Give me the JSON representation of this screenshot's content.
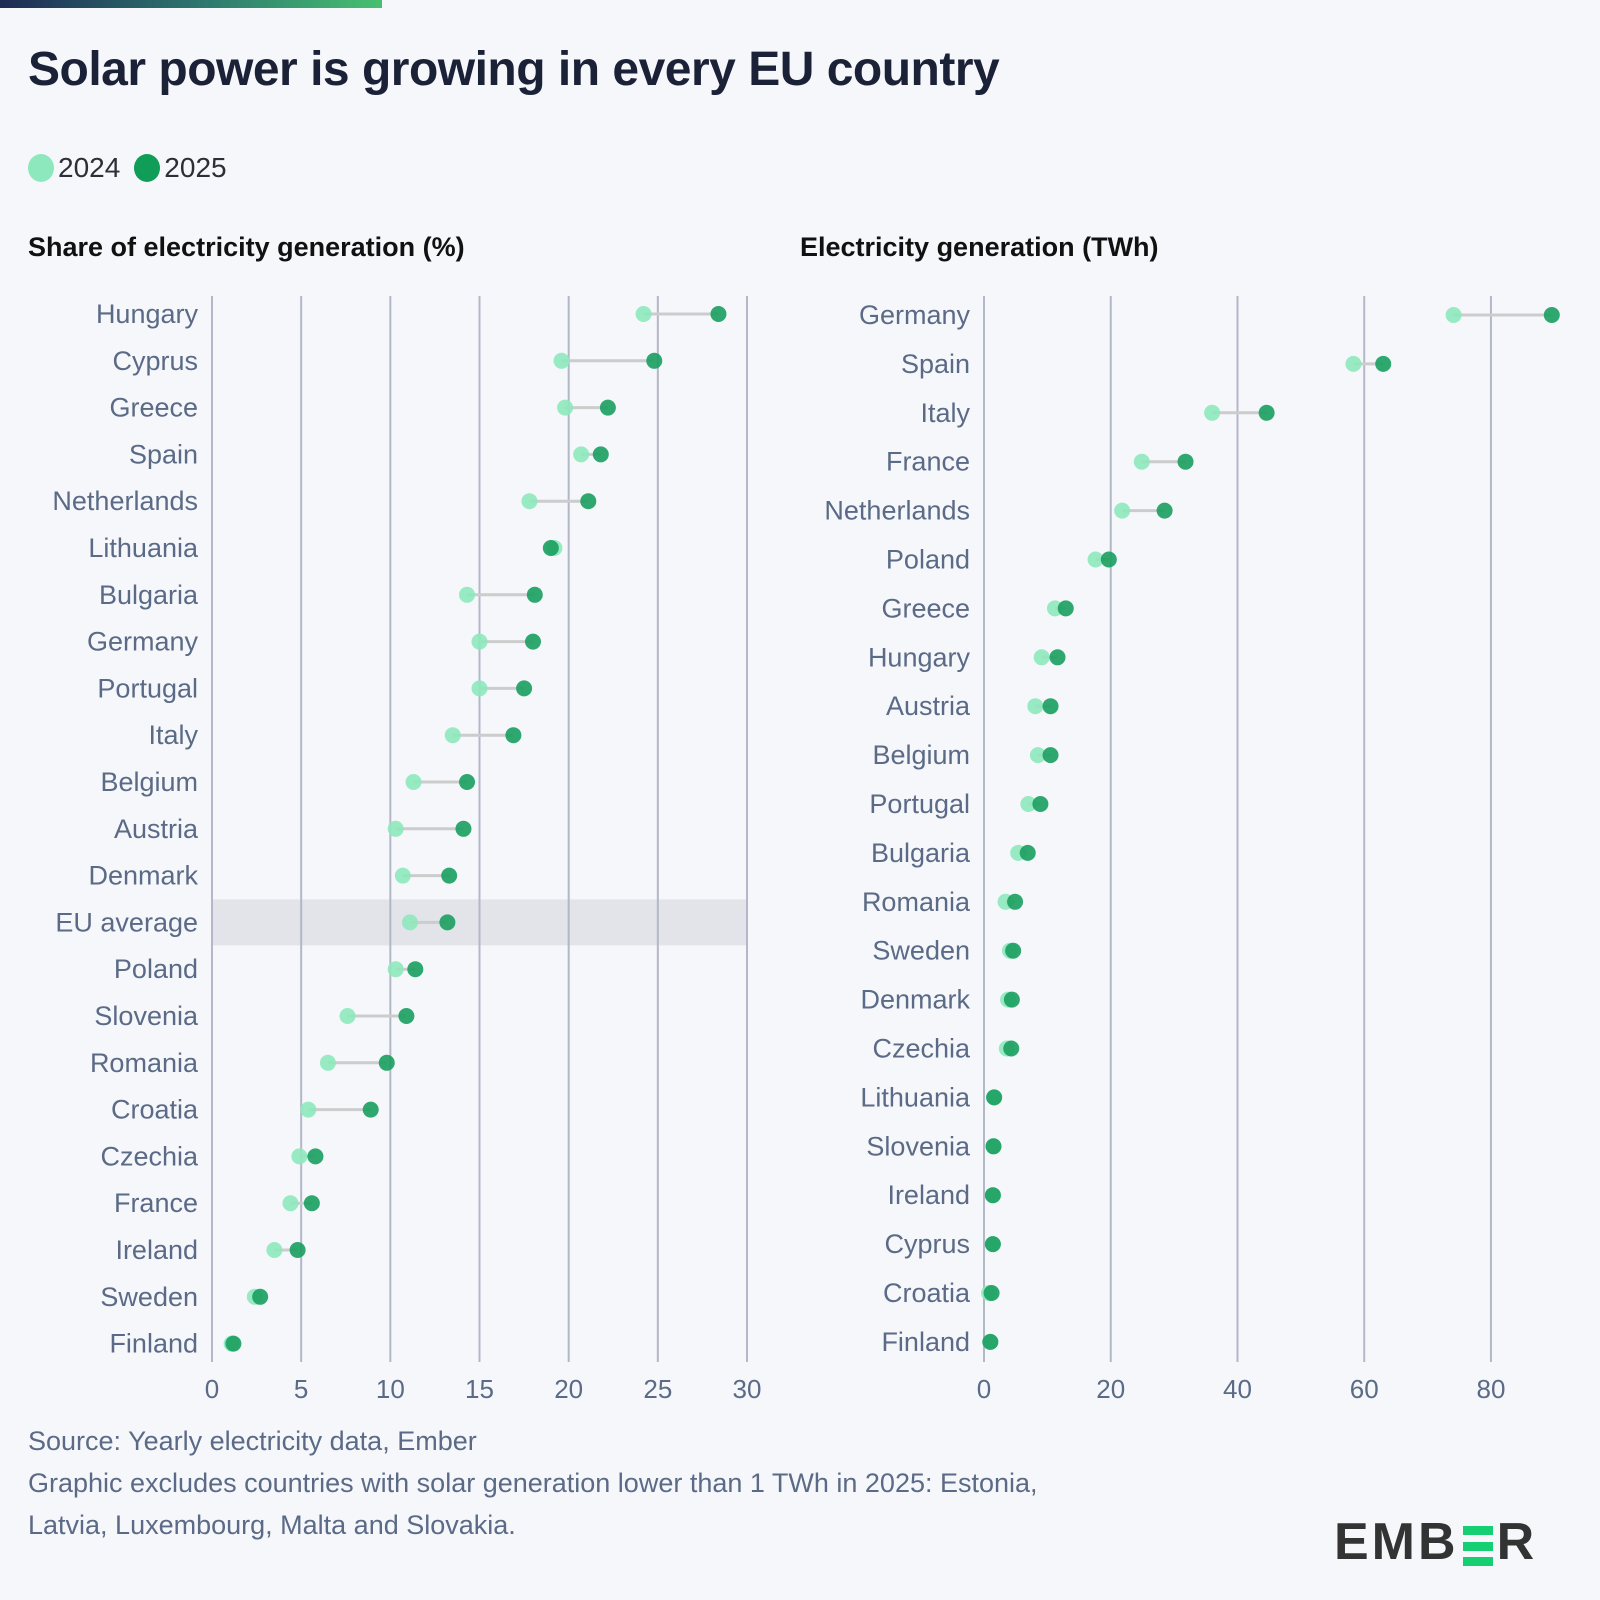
{
  "header": {
    "title": "Solar power is growing in every EU country"
  },
  "legend": [
    {
      "label": "2024",
      "color": "#8ee8bd"
    },
    {
      "label": "2025",
      "color": "#0f9d58"
    }
  ],
  "colors": {
    "y2024": "#8ee8bd",
    "y2025": "#1a9e5f",
    "connector": "#cccccc",
    "grid": "#b2b8c8",
    "highlight": "#e3e4ea",
    "label": "#5b6a86"
  },
  "chart_data": [
    {
      "type": "dumbbell",
      "title": "Share of electricity generation (%)",
      "xlabel": "",
      "ylabel": "",
      "xlim": [
        0,
        30
      ],
      "xticks": [
        0,
        5,
        10,
        15,
        20,
        25,
        30
      ],
      "grid": true,
      "legend_position": "top-left",
      "highlight": "EU average",
      "categories": [
        "Hungary",
        "Cyprus",
        "Greece",
        "Spain",
        "Netherlands",
        "Lithuania",
        "Bulgaria",
        "Germany",
        "Portugal",
        "Italy",
        "Belgium",
        "Austria",
        "Denmark",
        "EU average",
        "Poland",
        "Slovenia",
        "Romania",
        "Croatia",
        "Czechia",
        "France",
        "Ireland",
        "Sweden",
        "Finland"
      ],
      "series": [
        {
          "name": "2024",
          "values": [
            24.2,
            19.6,
            19.8,
            20.7,
            17.8,
            19.2,
            14.3,
            15.0,
            15.0,
            13.5,
            11.3,
            10.3,
            10.7,
            11.1,
            10.3,
            7.6,
            6.5,
            5.4,
            4.9,
            4.4,
            3.5,
            2.4,
            1.1
          ]
        },
        {
          "name": "2025",
          "values": [
            28.4,
            24.8,
            22.2,
            21.8,
            21.1,
            19.0,
            18.1,
            18.0,
            17.5,
            16.9,
            14.3,
            14.1,
            13.3,
            13.2,
            11.4,
            10.9,
            9.8,
            8.9,
            5.8,
            5.6,
            4.8,
            2.7,
            1.2
          ]
        }
      ]
    },
    {
      "type": "dumbbell",
      "title": "Electricity generation (TWh)",
      "xlabel": "",
      "ylabel": "",
      "xlim": [
        0,
        92
      ],
      "xticks": [
        0,
        20,
        40,
        60,
        80
      ],
      "grid": true,
      "categories": [
        "Germany",
        "Spain",
        "Italy",
        "France",
        "Netherlands",
        "Poland",
        "Greece",
        "Hungary",
        "Austria",
        "Belgium",
        "Portugal",
        "Bulgaria",
        "Romania",
        "Sweden",
        "Denmark",
        "Czechia",
        "Lithuania",
        "Slovenia",
        "Ireland",
        "Cyprus",
        "Croatia",
        "Finland"
      ],
      "series": [
        {
          "name": "2024",
          "values": [
            74.1,
            58.3,
            36.0,
            24.9,
            21.8,
            17.6,
            11.2,
            9.1,
            8.1,
            8.5,
            7.0,
            5.4,
            3.4,
            4.1,
            3.8,
            3.6,
            1.6,
            1.5,
            1.4,
            1.4,
            0.8,
            1.0
          ]
        },
        {
          "name": "2025",
          "values": [
            89.6,
            63.0,
            44.6,
            31.8,
            28.5,
            19.7,
            12.9,
            11.6,
            10.5,
            10.5,
            8.9,
            6.9,
            4.9,
            4.6,
            4.4,
            4.3,
            1.6,
            1.5,
            1.4,
            1.4,
            1.2,
            1.0
          ]
        }
      ]
    }
  ],
  "footer": {
    "source": "Source: Yearly electricity data, Ember",
    "note_line1": "Graphic excludes countries with solar generation lower than 1 TWh in 2025: Estonia,",
    "note_line2": "Latvia, Luxembourg, Malta and Slovakia."
  },
  "logo": {
    "prefix": "EMB",
    "suffix": "R",
    "name": "EMBER"
  }
}
